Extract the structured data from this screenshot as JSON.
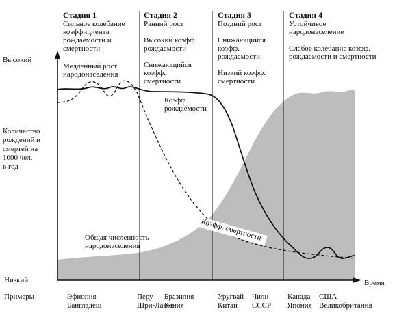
{
  "stages": [
    {
      "title": "Стадия 1",
      "lines": [
        "Сильное колебание",
        "коэффициента",
        "рождаемости и",
        "смертности"
      ],
      "extra": [
        "Медленный рост",
        "народонаселения"
      ]
    },
    {
      "title": "Стадия 2",
      "lines": [
        "Ранний рост"
      ],
      "extra": [
        "Высокий коэфф.",
        "рождаемости"
      ],
      "extra2": [
        "Снижающийся",
        "коэфф.",
        "смертности"
      ]
    },
    {
      "title": "Стадия 3",
      "lines": [
        "Поздний рост"
      ],
      "extra": [
        "Снижающийся",
        "коэфф.",
        "рождаемости"
      ],
      "extra2": [
        "Низкий коэфф.",
        "смертности"
      ]
    },
    {
      "title": "Стадия 4",
      "lines": [
        "Устойчивое",
        "народонаселение"
      ],
      "extra": [
        "Слабое колебание коэфф.",
        "рождаемости и смертности"
      ]
    }
  ],
  "axis": {
    "high": "Высокий",
    "low": "Низкий",
    "time": "Время",
    "ylabel": [
      "Количество",
      "рождений и",
      "смертей на",
      "1000 чел.",
      "в год"
    ]
  },
  "labels": {
    "birth_rate": [
      "Коэфф.",
      "рождаемости"
    ],
    "death_rate": "Коэфф. смертности",
    "population": [
      "Общая численность",
      "народонаселения"
    ]
  },
  "examples": {
    "title": "Примеры",
    "stage1": [
      "Эфиопия",
      "Бангладеш"
    ],
    "stage2_a": [
      "Перу",
      "Шри-Ланка"
    ],
    "stage2_b": [
      "Бразилия",
      "Кения"
    ],
    "stage3_a": [
      "Уругвай",
      "Китай"
    ],
    "stage3_b": [
      "Чили",
      "СССР"
    ],
    "stage4_a": [
      "Канада",
      "Япония"
    ],
    "stage4_b": [
      "США",
      "Великобритания"
    ]
  },
  "colors": {
    "population_fill": "#bdbdbd",
    "line": "#111111"
  }
}
